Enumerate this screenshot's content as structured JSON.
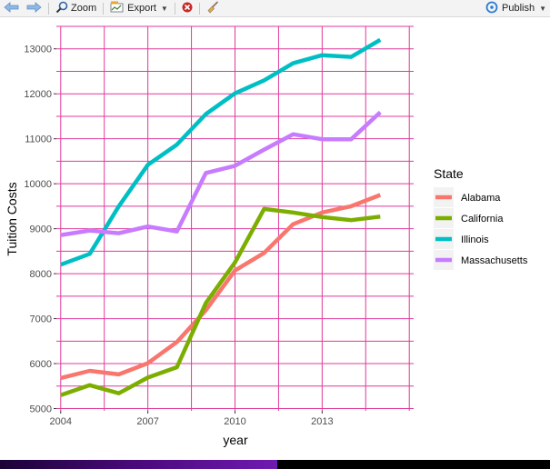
{
  "toolbar": {
    "back_icon": "arrow-left-icon",
    "forward_icon": "arrow-right-icon",
    "zoom_label": "Zoom",
    "export_label": "Export",
    "publish_label": "Publish",
    "accent_color": "#2c7bd6",
    "clear_icon_color": "#c62828"
  },
  "chart_data": {
    "type": "line",
    "title": "",
    "xlabel": "year",
    "ylabel": "Tuition Costs",
    "xlim": [
      2003.85,
      2016.15
    ],
    "ylim": [
      4950,
      13500
    ],
    "x_ticks": [
      2004,
      2007,
      2010,
      2013
    ],
    "x_tick_labels": [
      "2004",
      "2007",
      "2010",
      "2013"
    ],
    "y_ticks": [
      5000,
      6000,
      7000,
      8000,
      9000,
      10000,
      11000,
      12000,
      13000
    ],
    "y_tick_labels": [
      "5000",
      "6000",
      "7000",
      "8000",
      "9000",
      "10000",
      "11000",
      "12000",
      "13000"
    ],
    "grid": true,
    "grid_color": "#e0399b",
    "panel_background": "#ffffff",
    "legend": {
      "title": "State",
      "position": "right",
      "entries": [
        "Alabama",
        "California",
        "Illinois",
        "Massachusetts"
      ]
    },
    "x": [
      2004,
      2005,
      2006,
      2007,
      2008,
      2009,
      2010,
      2011,
      2012,
      2013,
      2014,
      2015
    ],
    "series": [
      {
        "name": "Alabama",
        "color": "#f8766d",
        "values": [
          5680,
          5840,
          5760,
          6010,
          6480,
          7190,
          8070,
          8460,
          9100,
          9360,
          9500,
          9750
        ]
      },
      {
        "name": "California",
        "color": "#7cae00",
        "values": [
          5300,
          5520,
          5340,
          5690,
          5920,
          7350,
          8250,
          9440,
          9360,
          9260,
          9190,
          9270
        ]
      },
      {
        "name": "Illinois",
        "color": "#00bfc4",
        "values": [
          8200,
          8440,
          9500,
          10420,
          10870,
          11550,
          12010,
          12300,
          12680,
          12860,
          12820,
          13200
        ]
      },
      {
        "name": "Massachusetts",
        "color": "#c77cff",
        "values": [
          8860,
          8960,
          8900,
          9050,
          8940,
          10240,
          10400,
          10760,
          11100,
          10990,
          10990,
          11590
        ]
      }
    ]
  }
}
